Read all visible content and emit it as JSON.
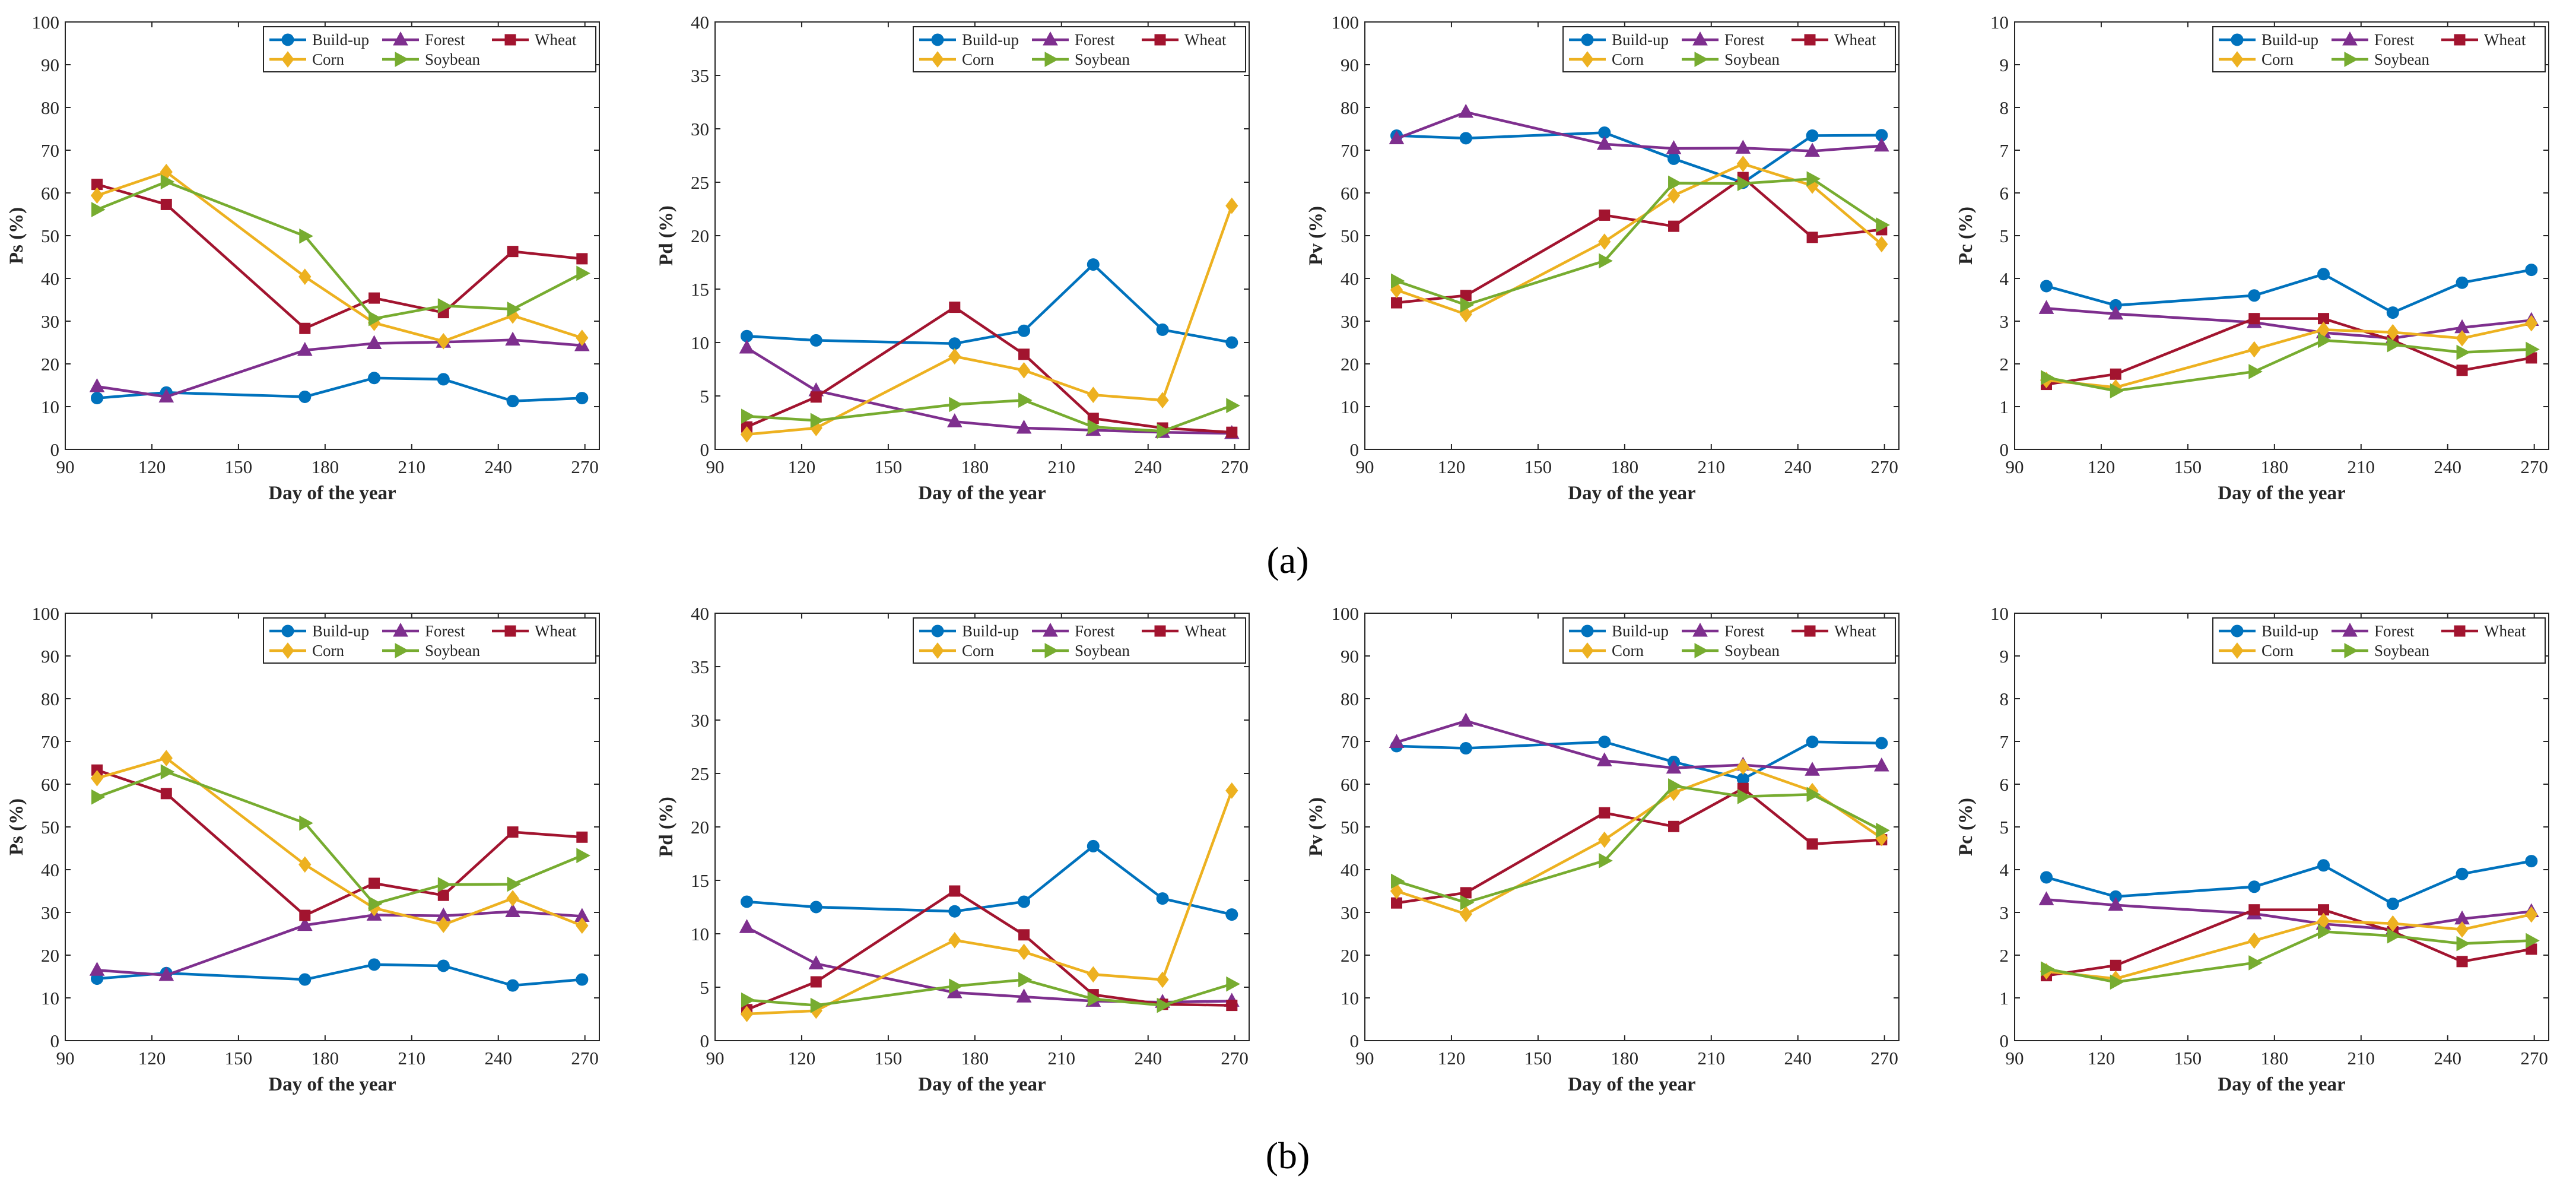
{
  "figure": {
    "row_labels": [
      "(a)",
      "(b)"
    ]
  },
  "legend_order": [
    "Build-up",
    "Forest",
    "Wheat",
    "Corn",
    "Soybean"
  ],
  "colors": {
    "Build-up": "#0072BD",
    "Forest": "#7E2F8E",
    "Wheat": "#A2142F",
    "Corn": "#EDB120",
    "Soybean": "#77AC30"
  },
  "markers": {
    "Build-up": "circle",
    "Forest": "triangle-up",
    "Wheat": "square",
    "Corn": "diamond",
    "Soybean": "triangle-right"
  },
  "chart_data": [
    {
      "row": "a",
      "type": "line",
      "ylabel": "Ps (%)",
      "xlabel": "Day of the year",
      "xlim": [
        90,
        275
      ],
      "xticks": [
        90,
        120,
        150,
        180,
        210,
        240,
        270
      ],
      "ylim": [
        0,
        100
      ],
      "yticks": [
        0,
        10,
        20,
        30,
        40,
        50,
        60,
        70,
        80,
        90,
        100
      ],
      "x": [
        101,
        125,
        173,
        197,
        221,
        245,
        269
      ],
      "series": [
        {
          "name": "Build-up",
          "values": [
            12,
            13.3,
            12.3,
            16.7,
            16.4,
            11.3,
            12
          ]
        },
        {
          "name": "Forest",
          "values": [
            14.7,
            12.3,
            23.2,
            24.8,
            25.1,
            25.6,
            24.3
          ]
        },
        {
          "name": "Wheat",
          "values": [
            62,
            57.3,
            28.3,
            35.4,
            32,
            46.3,
            44.6
          ]
        },
        {
          "name": "Corn",
          "values": [
            59.4,
            64.9,
            40.4,
            29.6,
            25.3,
            31.3,
            26.1
          ]
        },
        {
          "name": "Soybean",
          "values": [
            56.1,
            62.6,
            49.9,
            30.6,
            33.6,
            32.8,
            41.2
          ]
        }
      ]
    },
    {
      "row": "a",
      "type": "line",
      "ylabel": "Pd (%)",
      "xlabel": "Day of the year",
      "xlim": [
        90,
        275
      ],
      "xticks": [
        90,
        120,
        150,
        180,
        210,
        240,
        270
      ],
      "ylim": [
        0,
        40
      ],
      "yticks": [
        0,
        5,
        10,
        15,
        20,
        25,
        30,
        35,
        40
      ],
      "x": [
        101,
        125,
        173,
        197,
        221,
        245,
        269
      ],
      "series": [
        {
          "name": "Build-up",
          "values": [
            10.6,
            10.2,
            9.9,
            11.1,
            17.3,
            11.2,
            10
          ]
        },
        {
          "name": "Forest",
          "values": [
            9.5,
            5.5,
            2.6,
            2,
            1.8,
            1.6,
            1.5
          ]
        },
        {
          "name": "Wheat",
          "values": [
            2.1,
            4.9,
            13.3,
            8.9,
            2.9,
            2,
            1.6
          ]
        },
        {
          "name": "Corn",
          "values": [
            1.4,
            2,
            8.7,
            7.4,
            5.1,
            4.6,
            22.8
          ]
        },
        {
          "name": "Soybean",
          "values": [
            3.1,
            2.7,
            4.2,
            4.6,
            2.1,
            1.7,
            4.1
          ]
        }
      ]
    },
    {
      "row": "a",
      "type": "line",
      "ylabel": "Pv (%)",
      "xlabel": "Day of the year",
      "xlim": [
        90,
        275
      ],
      "xticks": [
        90,
        120,
        150,
        180,
        210,
        240,
        270
      ],
      "ylim": [
        0,
        100
      ],
      "yticks": [
        0,
        10,
        20,
        30,
        40,
        50,
        60,
        70,
        80,
        90,
        100
      ],
      "x": [
        101,
        125,
        173,
        197,
        221,
        245,
        269
      ],
      "series": [
        {
          "name": "Build-up",
          "values": [
            73.4,
            72.8,
            74.1,
            68,
            62.4,
            73.4,
            73.5
          ]
        },
        {
          "name": "Forest",
          "values": [
            72.7,
            78.9,
            71.4,
            70.4,
            70.5,
            69.8,
            71
          ]
        },
        {
          "name": "Wheat",
          "values": [
            34.3,
            36,
            54.8,
            52.2,
            63.6,
            49.6,
            51.4
          ]
        },
        {
          "name": "Corn",
          "values": [
            37.3,
            31.6,
            48.6,
            59.4,
            66.8,
            61.7,
            48
          ]
        },
        {
          "name": "Soybean",
          "values": [
            39.4,
            33.8,
            44.1,
            62.3,
            62.2,
            63.3,
            52.5
          ]
        }
      ]
    },
    {
      "row": "a",
      "type": "line",
      "ylabel": "Pc (%)",
      "xlabel": "Day of the year",
      "xlim": [
        90,
        275
      ],
      "xticks": [
        90,
        120,
        150,
        180,
        210,
        240,
        270
      ],
      "ylim": [
        0,
        10
      ],
      "yticks": [
        0,
        1,
        2,
        3,
        4,
        5,
        6,
        7,
        8,
        9,
        10
      ],
      "x": [
        101,
        125,
        173,
        197,
        221,
        245,
        269
      ],
      "series": [
        {
          "name": "Build-up",
          "values": [
            3.82,
            3.37,
            3.6,
            4.1,
            3.2,
            3.9,
            4.2
          ]
        },
        {
          "name": "Forest",
          "values": [
            3.3,
            3.17,
            2.97,
            2.73,
            2.6,
            2.85,
            3.02
          ]
        },
        {
          "name": "Wheat",
          "values": [
            1.52,
            1.76,
            3.06,
            3.06,
            2.55,
            1.85,
            2.14
          ]
        },
        {
          "name": "Corn",
          "values": [
            1.62,
            1.45,
            2.34,
            2.8,
            2.74,
            2.6,
            2.95
          ]
        },
        {
          "name": "Soybean",
          "values": [
            1.68,
            1.37,
            1.82,
            2.55,
            2.45,
            2.27,
            2.34
          ]
        }
      ]
    },
    {
      "row": "b",
      "type": "line",
      "ylabel": "Ps (%)",
      "xlabel": "Day of the year",
      "xlim": [
        90,
        275
      ],
      "xticks": [
        90,
        120,
        150,
        180,
        210,
        240,
        270
      ],
      "ylim": [
        0,
        100
      ],
      "yticks": [
        0,
        10,
        20,
        30,
        40,
        50,
        60,
        70,
        80,
        90,
        100
      ],
      "x": [
        101,
        125,
        173,
        197,
        221,
        245,
        269
      ],
      "series": [
        {
          "name": "Build-up",
          "values": [
            14.5,
            15.8,
            14.3,
            17.8,
            17.5,
            12.9,
            14.3
          ]
        },
        {
          "name": "Forest",
          "values": [
            16.5,
            15.3,
            27,
            29.4,
            29.2,
            30.2,
            29.1
          ]
        },
        {
          "name": "Wheat",
          "values": [
            63.3,
            57.8,
            29.3,
            36.8,
            34,
            48.8,
            47.6
          ]
        },
        {
          "name": "Corn",
          "values": [
            61.4,
            66.1,
            41.2,
            31,
            27.1,
            33.3,
            26.9
          ]
        },
        {
          "name": "Soybean",
          "values": [
            57,
            62.9,
            50.9,
            32,
            36.5,
            36.6,
            43.3
          ]
        }
      ]
    },
    {
      "row": "b",
      "type": "line",
      "ylabel": "Pd (%)",
      "xlabel": "Day of the year",
      "xlim": [
        90,
        275
      ],
      "xticks": [
        90,
        120,
        150,
        180,
        210,
        240,
        270
      ],
      "ylim": [
        0,
        40
      ],
      "yticks": [
        0,
        5,
        10,
        15,
        20,
        25,
        30,
        35,
        40
      ],
      "x": [
        101,
        125,
        173,
        197,
        221,
        245,
        269
      ],
      "series": [
        {
          "name": "Build-up",
          "values": [
            13,
            12.5,
            12.1,
            13,
            18.2,
            13.3,
            11.8
          ]
        },
        {
          "name": "Forest",
          "values": [
            10.6,
            7.2,
            4.5,
            4.1,
            3.7,
            3.6,
            3.7
          ]
        },
        {
          "name": "Wheat",
          "values": [
            2.9,
            5.5,
            14,
            9.9,
            4.3,
            3.4,
            3.3
          ]
        },
        {
          "name": "Corn",
          "values": [
            2.5,
            2.8,
            9.4,
            8.3,
            6.2,
            5.7,
            23.4
          ]
        },
        {
          "name": "Soybean",
          "values": [
            3.8,
            3.3,
            5.1,
            5.7,
            3.9,
            3.3,
            5.3
          ]
        }
      ]
    },
    {
      "row": "b",
      "type": "line",
      "ylabel": "Pv (%)",
      "xlabel": "Day of the year",
      "xlim": [
        90,
        275
      ],
      "xticks": [
        90,
        120,
        150,
        180,
        210,
        240,
        270
      ],
      "ylim": [
        0,
        100
      ],
      "yticks": [
        0,
        10,
        20,
        30,
        40,
        50,
        60,
        70,
        80,
        90,
        100
      ],
      "x": [
        101,
        125,
        173,
        197,
        221,
        245,
        269
      ],
      "series": [
        {
          "name": "Build-up",
          "values": [
            68.9,
            68.4,
            69.9,
            65.2,
            61.2,
            69.9,
            69.6
          ]
        },
        {
          "name": "Forest",
          "values": [
            69.8,
            74.8,
            65.5,
            63.8,
            64.5,
            63.3,
            64.3
          ]
        },
        {
          "name": "Wheat",
          "values": [
            32.2,
            34.6,
            53.3,
            50.1,
            59,
            46,
            47
          ]
        },
        {
          "name": "Corn",
          "values": [
            35,
            29.6,
            47,
            58,
            64.1,
            58.4,
            47.4
          ]
        },
        {
          "name": "Soybean",
          "values": [
            37.3,
            32.3,
            42.1,
            59.6,
            57.1,
            57.6,
            49.2
          ]
        }
      ]
    },
    {
      "row": "b",
      "type": "line",
      "ylabel": "Pc (%)",
      "xlabel": "Day of the year",
      "xlim": [
        90,
        275
      ],
      "xticks": [
        90,
        120,
        150,
        180,
        210,
        240,
        270
      ],
      "ylim": [
        0,
        10
      ],
      "yticks": [
        0,
        1,
        2,
        3,
        4,
        5,
        6,
        7,
        8,
        9,
        10
      ],
      "x": [
        101,
        125,
        173,
        197,
        221,
        245,
        269
      ],
      "series": [
        {
          "name": "Build-up",
          "values": [
            3.82,
            3.37,
            3.6,
            4.1,
            3.2,
            3.9,
            4.2
          ]
        },
        {
          "name": "Forest",
          "values": [
            3.3,
            3.17,
            2.97,
            2.73,
            2.6,
            2.85,
            3.02
          ]
        },
        {
          "name": "Wheat",
          "values": [
            1.52,
            1.76,
            3.06,
            3.06,
            2.55,
            1.85,
            2.14
          ]
        },
        {
          "name": "Corn",
          "values": [
            1.62,
            1.45,
            2.34,
            2.8,
            2.74,
            2.6,
            2.95
          ]
        },
        {
          "name": "Soybean",
          "values": [
            1.68,
            1.37,
            1.82,
            2.55,
            2.45,
            2.27,
            2.34
          ]
        }
      ]
    }
  ]
}
